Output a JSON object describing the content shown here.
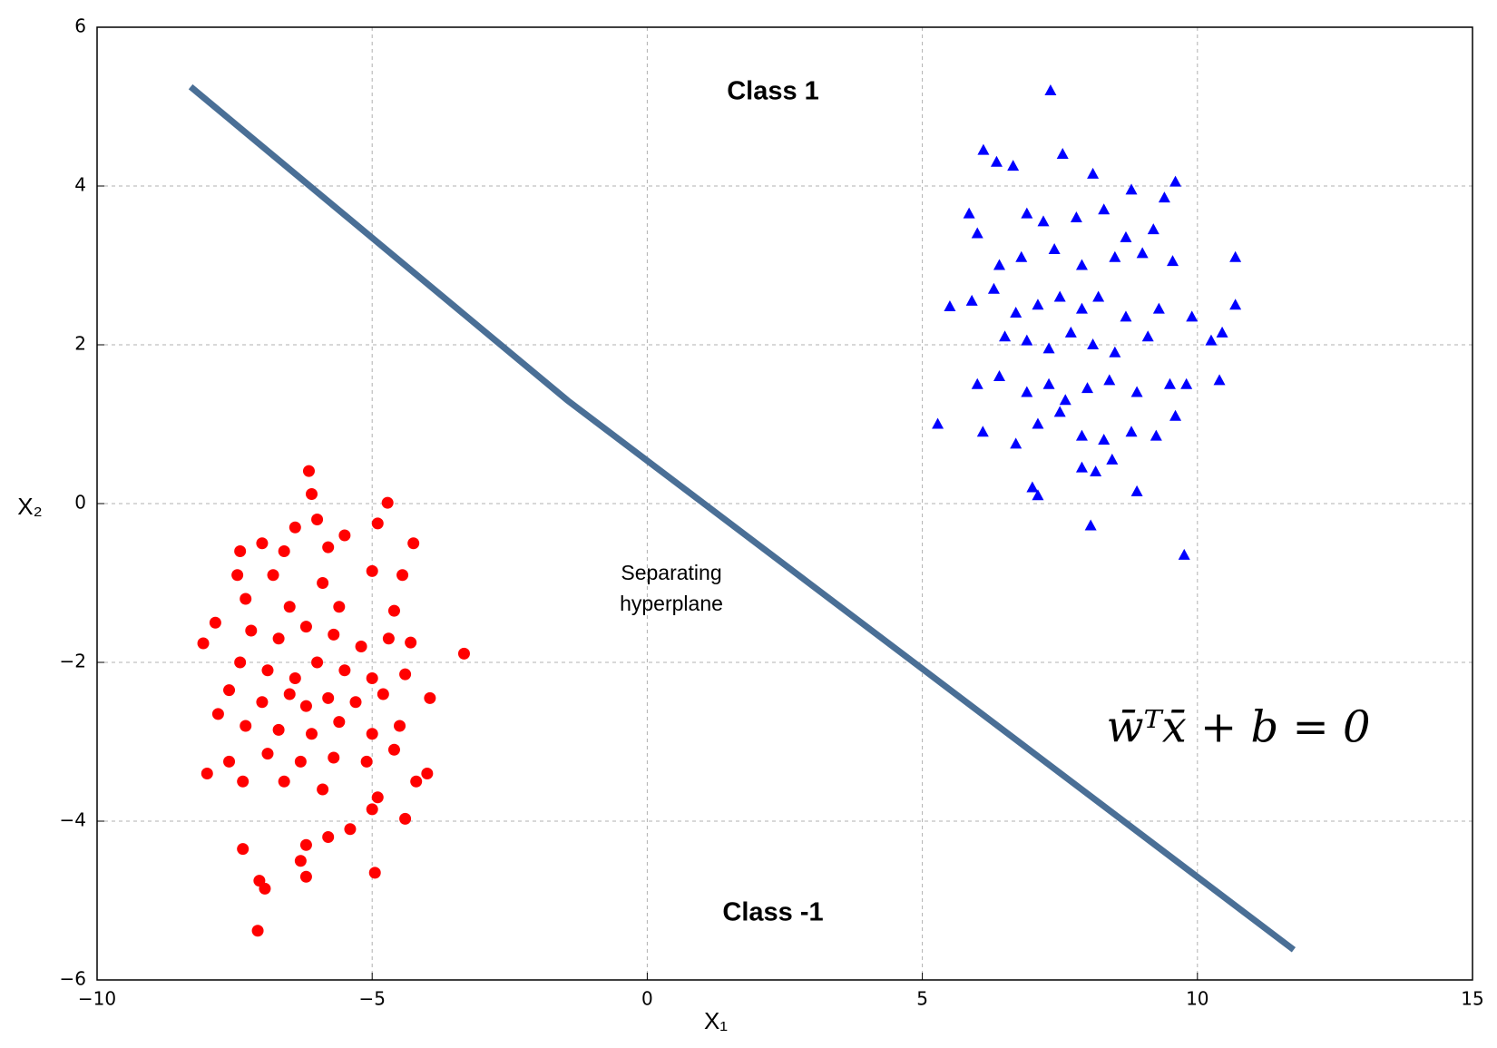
{
  "chart_data": {
    "type": "scatter",
    "xlim": [
      -10,
      15
    ],
    "ylim": [
      -6,
      6
    ],
    "xticks": [
      {
        "value": -10,
        "label": "−10"
      },
      {
        "value": -5,
        "label": "−5"
      },
      0,
      5,
      10,
      15
    ],
    "yticks": [
      {
        "value": -6,
        "label": "−6"
      },
      {
        "value": -4,
        "label": "−4"
      },
      {
        "value": -2,
        "label": "−2"
      },
      0,
      2,
      4,
      6
    ],
    "grid": true,
    "xlabel": "X₁",
    "ylabel": "X₂",
    "series": [
      {
        "marker": "triangle",
        "color": "#0000ff",
        "x": [
          7.33,
          6.11,
          6.35,
          6.65,
          7.55,
          8.1,
          9.6,
          9.4,
          8.8,
          5.85,
          6.0,
          6.9,
          7.2,
          7.8,
          8.3,
          8.7,
          9.2,
          6.4,
          6.8,
          7.4,
          7.9,
          8.5,
          9.0,
          9.55,
          10.69,
          5.5,
          5.9,
          6.3,
          6.7,
          7.1,
          7.5,
          7.9,
          8.2,
          8.7,
          9.3,
          9.9,
          10.69,
          6.5,
          6.9,
          7.3,
          7.7,
          8.1,
          8.5,
          9.1,
          10.45,
          10.25,
          6.0,
          6.4,
          6.9,
          7.3,
          7.6,
          8.0,
          8.4,
          8.9,
          9.5,
          10.4,
          9.8,
          5.28,
          6.1,
          6.7,
          7.1,
          7.5,
          7.9,
          8.3,
          8.8,
          9.25,
          9.6,
          7.0,
          7.1,
          7.9,
          8.15,
          8.45,
          8.9,
          8.06,
          9.76
        ],
        "y": [
          5.2,
          4.45,
          4.3,
          4.25,
          4.4,
          4.15,
          4.05,
          3.85,
          3.95,
          3.65,
          3.4,
          3.65,
          3.55,
          3.6,
          3.7,
          3.35,
          3.45,
          3.0,
          3.1,
          3.2,
          3.0,
          3.1,
          3.15,
          3.05,
          3.1,
          2.48,
          2.55,
          2.7,
          2.4,
          2.5,
          2.6,
          2.45,
          2.6,
          2.35,
          2.45,
          2.35,
          2.5,
          2.1,
          2.05,
          1.95,
          2.15,
          2.0,
          1.9,
          2.1,
          2.15,
          2.05,
          1.5,
          1.6,
          1.4,
          1.5,
          1.3,
          1.45,
          1.55,
          1.4,
          1.5,
          1.55,
          1.5,
          1.0,
          0.9,
          0.75,
          1.0,
          1.15,
          0.85,
          0.8,
          0.9,
          0.85,
          1.1,
          0.2,
          0.1,
          0.45,
          0.4,
          0.55,
          0.15,
          -0.28,
          -0.65
        ]
      },
      {
        "marker": "circle",
        "color": "#ff0000",
        "x": [
          -6.15,
          -6.1,
          -4.72,
          -6.0,
          -6.4,
          -4.9,
          -5.5,
          -7.4,
          -7.0,
          -6.6,
          -5.8,
          -4.25,
          -7.45,
          -6.8,
          -5.9,
          -5.0,
          -4.45,
          -7.3,
          -6.5,
          -5.6,
          -4.6,
          -8.07,
          -7.85,
          -7.2,
          -6.7,
          -6.2,
          -5.7,
          -5.2,
          -4.7,
          -4.3,
          -3.33,
          -7.4,
          -6.9,
          -6.4,
          -6.0,
          -5.5,
          -5.0,
          -4.4,
          -7.6,
          -7.0,
          -6.5,
          -6.2,
          -5.8,
          -5.3,
          -4.8,
          -3.95,
          -7.8,
          -7.3,
          -6.7,
          -6.1,
          -5.6,
          -5.0,
          -4.5,
          -7.6,
          -6.9,
          -6.3,
          -5.7,
          -5.1,
          -4.6,
          -8.0,
          -7.35,
          -6.6,
          -5.9,
          -4.9,
          -4.2,
          -4.0,
          -5.0,
          -4.4,
          -5.4,
          -5.8,
          -6.2,
          -7.35,
          -6.3,
          -6.2,
          -4.95,
          -7.05,
          -6.95,
          -7.08
        ],
        "y": [
          0.41,
          0.12,
          0.01,
          -0.2,
          -0.3,
          -0.25,
          -0.4,
          -0.6,
          -0.5,
          -0.6,
          -0.55,
          -0.5,
          -0.9,
          -0.9,
          -1.0,
          -0.85,
          -0.9,
          -1.2,
          -1.3,
          -1.3,
          -1.35,
          -1.76,
          -1.5,
          -1.6,
          -1.7,
          -1.55,
          -1.65,
          -1.8,
          -1.7,
          -1.75,
          -1.89,
          -2.0,
          -2.1,
          -2.2,
          -2.0,
          -2.1,
          -2.2,
          -2.15,
          -2.35,
          -2.5,
          -2.4,
          -2.55,
          -2.45,
          -2.5,
          -2.4,
          -2.45,
          -2.65,
          -2.8,
          -2.85,
          -2.9,
          -2.75,
          -2.9,
          -2.8,
          -3.25,
          -3.15,
          -3.25,
          -3.2,
          -3.25,
          -3.1,
          -3.4,
          -3.5,
          -3.5,
          -3.6,
          -3.7,
          -3.5,
          -3.4,
          -3.85,
          -3.97,
          -4.1,
          -4.2,
          -4.3,
          -4.35,
          -4.5,
          -4.7,
          -4.65,
          -4.75,
          -4.85,
          -5.38
        ]
      },
      {
        "marker": "line",
        "color": "#4a6f96",
        "x": [
          -8.3,
          -1.45,
          11.75
        ],
        "y": [
          5.25,
          1.3,
          -5.62
        ]
      }
    ],
    "annotations": [
      {
        "text": "Class 1"
      },
      {
        "text": "Class -1"
      },
      {
        "text": "Separating hyperplane"
      },
      {
        "text": "w̄ᵀx̄ + b = 0"
      }
    ]
  }
}
